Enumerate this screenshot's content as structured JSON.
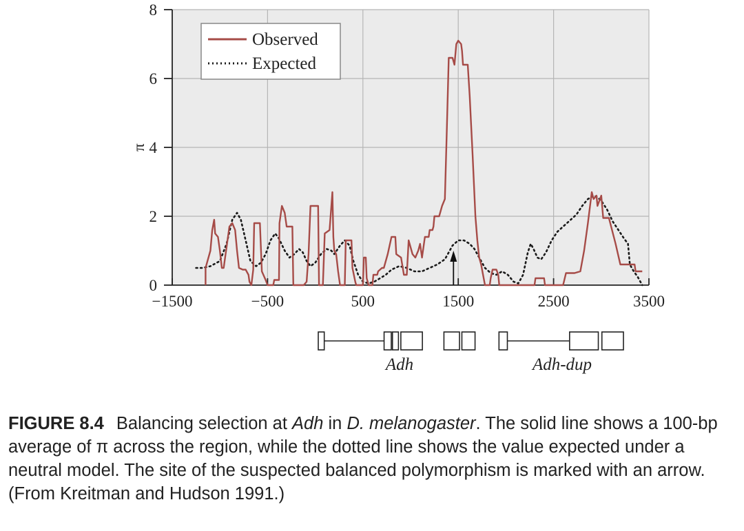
{
  "chart_data": {
    "type": "line",
    "ylabel": "π",
    "xlabel": "",
    "xlim": [
      -1500,
      3500
    ],
    "ylim": [
      0,
      8
    ],
    "x_ticks": [
      "−1500",
      "−500",
      "500",
      "1500",
      "2500",
      "3500"
    ],
    "x_tick_values": [
      -1500,
      -500,
      500,
      1500,
      2500,
      3500
    ],
    "y_ticks": [
      "0",
      "2",
      "4",
      "6",
      "8"
    ],
    "y_tick_values": [
      0,
      2,
      4,
      6,
      8
    ],
    "grid": true,
    "legend_position": "top-left",
    "series": [
      {
        "name": "Observed",
        "style": "solid",
        "color": "#a64b47",
        "points": [
          [
            -1150,
            0
          ],
          [
            -1150,
            0.5
          ],
          [
            -1100,
            1.0
          ],
          [
            -1080,
            1.6
          ],
          [
            -1060,
            1.9
          ],
          [
            -1050,
            1.5
          ],
          [
            -1020,
            1.4
          ],
          [
            -1000,
            1.0
          ],
          [
            -980,
            0.5
          ],
          [
            -960,
            0.5
          ],
          [
            -900,
            1.7
          ],
          [
            -870,
            1.8
          ],
          [
            -840,
            1.6
          ],
          [
            -820,
            1.0
          ],
          [
            -800,
            0.5
          ],
          [
            -760,
            0.45
          ],
          [
            -730,
            0.45
          ],
          [
            -700,
            0.3
          ],
          [
            -690,
            0.1
          ],
          [
            -670,
            0.0
          ],
          [
            -650,
            0.45
          ],
          [
            -640,
            1.8
          ],
          [
            -580,
            1.8
          ],
          [
            -560,
            0.4
          ],
          [
            -520,
            0.15
          ],
          [
            -500,
            0.0
          ],
          [
            -440,
            0.0
          ],
          [
            -430,
            0.15
          ],
          [
            -380,
            0.15
          ],
          [
            -375,
            1.8
          ],
          [
            -350,
            2.3
          ],
          [
            -320,
            2.1
          ],
          [
            -300,
            1.7
          ],
          [
            -240,
            1.7
          ],
          [
            -230,
            0.0
          ],
          [
            -130,
            0.0
          ],
          [
            -120,
            0.0
          ],
          [
            -90,
            0.1
          ],
          [
            -70,
            0.9
          ],
          [
            -50,
            2.3
          ],
          [
            30,
            2.3
          ],
          [
            40,
            0.0
          ],
          [
            80,
            0.0
          ],
          [
            100,
            1.5
          ],
          [
            150,
            1.6
          ],
          [
            180,
            2.7
          ],
          [
            190,
            1.4
          ],
          [
            200,
            1.0
          ],
          [
            220,
            0.9
          ],
          [
            240,
            0.4
          ],
          [
            260,
            0.0
          ],
          [
            300,
            0.0
          ],
          [
            310,
            0.0
          ],
          [
            320,
            1.3
          ],
          [
            380,
            1.3
          ],
          [
            390,
            0.5
          ],
          [
            420,
            0.1
          ],
          [
            430,
            0.0
          ],
          [
            500,
            0.0
          ],
          [
            510,
            0.8
          ],
          [
            530,
            0.8
          ],
          [
            540,
            0.2
          ],
          [
            560,
            0.0
          ],
          [
            600,
            0.0
          ],
          [
            610,
            0.3
          ],
          [
            650,
            0.3
          ],
          [
            660,
            0.4
          ],
          [
            700,
            0.5
          ],
          [
            720,
            0.5
          ],
          [
            760,
            0.9
          ],
          [
            800,
            1.4
          ],
          [
            840,
            1.4
          ],
          [
            850,
            0.9
          ],
          [
            900,
            0.8
          ],
          [
            930,
            0.3
          ],
          [
            960,
            0.3
          ],
          [
            980,
            1.3
          ],
          [
            1020,
            0.9
          ],
          [
            1050,
            0.8
          ],
          [
            1080,
            1.0
          ],
          [
            1100,
            1.2
          ],
          [
            1120,
            0.8
          ],
          [
            1150,
            1.4
          ],
          [
            1190,
            1.4
          ],
          [
            1200,
            1.6
          ],
          [
            1230,
            1.6
          ],
          [
            1240,
            1.7
          ],
          [
            1250,
            2.0
          ],
          [
            1300,
            2.0
          ],
          [
            1330,
            2.3
          ],
          [
            1360,
            2.5
          ],
          [
            1380,
            4.5
          ],
          [
            1400,
            6.6
          ],
          [
            1440,
            6.6
          ],
          [
            1460,
            6.4
          ],
          [
            1480,
            7.0
          ],
          [
            1500,
            7.1
          ],
          [
            1530,
            7.0
          ],
          [
            1540,
            6.8
          ],
          [
            1550,
            6.4
          ],
          [
            1600,
            6.4
          ],
          [
            1620,
            5.5
          ],
          [
            1650,
            3.8
          ],
          [
            1680,
            2.0
          ],
          [
            1700,
            1.3
          ],
          [
            1720,
            0.8
          ],
          [
            1740,
            0.6
          ],
          [
            1760,
            0.3
          ],
          [
            1780,
            0.0
          ],
          [
            1830,
            0.0
          ],
          [
            1840,
            0.2
          ],
          [
            1860,
            0.45
          ],
          [
            1900,
            0.45
          ],
          [
            1920,
            0.3
          ],
          [
            1930,
            0.0
          ],
          [
            2300,
            0.0
          ],
          [
            2310,
            0.2
          ],
          [
            2400,
            0.2
          ],
          [
            2410,
            0.0
          ],
          [
            2600,
            0.0
          ],
          [
            2630,
            0.35
          ],
          [
            2720,
            0.35
          ],
          [
            2780,
            0.4
          ],
          [
            2820,
            1.0
          ],
          [
            2860,
            1.8
          ],
          [
            2900,
            2.7
          ],
          [
            2920,
            2.5
          ],
          [
            2950,
            2.6
          ],
          [
            2960,
            2.3
          ],
          [
            3000,
            2.6
          ],
          [
            3020,
            1.95
          ],
          [
            3080,
            1.95
          ],
          [
            3150,
            1.2
          ],
          [
            3200,
            0.6
          ],
          [
            3350,
            0.6
          ],
          [
            3360,
            0.4
          ],
          [
            3430,
            0.4
          ]
        ]
      },
      {
        "name": "Expected",
        "style": "dotted",
        "color": "#1a1a1a",
        "points": [
          [
            -1250,
            0.5
          ],
          [
            -1180,
            0.5
          ],
          [
            -1100,
            0.55
          ],
          [
            -1000,
            0.7
          ],
          [
            -930,
            1.2
          ],
          [
            -870,
            1.9
          ],
          [
            -820,
            2.1
          ],
          [
            -780,
            1.9
          ],
          [
            -730,
            1.3
          ],
          [
            -680,
            0.7
          ],
          [
            -620,
            0.55
          ],
          [
            -570,
            0.65
          ],
          [
            -520,
            0.9
          ],
          [
            -470,
            1.3
          ],
          [
            -420,
            1.5
          ],
          [
            -380,
            1.35
          ],
          [
            -320,
            1.0
          ],
          [
            -270,
            0.8
          ],
          [
            -220,
            0.9
          ],
          [
            -170,
            1.05
          ],
          [
            -130,
            0.95
          ],
          [
            -90,
            0.7
          ],
          [
            -50,
            0.55
          ],
          [
            0,
            0.65
          ],
          [
            60,
            0.9
          ],
          [
            120,
            1.05
          ],
          [
            170,
            1.0
          ],
          [
            200,
            0.9
          ],
          [
            260,
            1.15
          ],
          [
            310,
            1.3
          ],
          [
            360,
            1.15
          ],
          [
            400,
            0.7
          ],
          [
            450,
            0.3
          ],
          [
            500,
            0.1
          ],
          [
            560,
            0.05
          ],
          [
            620,
            0.1
          ],
          [
            680,
            0.2
          ],
          [
            740,
            0.3
          ],
          [
            800,
            0.45
          ],
          [
            880,
            0.55
          ],
          [
            960,
            0.5
          ],
          [
            1040,
            0.4
          ],
          [
            1120,
            0.4
          ],
          [
            1200,
            0.5
          ],
          [
            1280,
            0.6
          ],
          [
            1360,
            0.75
          ],
          [
            1400,
            0.95
          ],
          [
            1440,
            1.15
          ],
          [
            1500,
            1.3
          ],
          [
            1560,
            1.3
          ],
          [
            1620,
            1.2
          ],
          [
            1670,
            1.05
          ],
          [
            1720,
            0.8
          ],
          [
            1780,
            0.5
          ],
          [
            1840,
            0.35
          ],
          [
            1900,
            0.3
          ],
          [
            1960,
            0.4
          ],
          [
            2020,
            0.3
          ],
          [
            2080,
            0.1
          ],
          [
            2130,
            0.05
          ],
          [
            2180,
            0.3
          ],
          [
            2230,
            0.95
          ],
          [
            2260,
            1.2
          ],
          [
            2290,
            1.05
          ],
          [
            2330,
            0.8
          ],
          [
            2370,
            0.75
          ],
          [
            2420,
            0.95
          ],
          [
            2480,
            1.3
          ],
          [
            2540,
            1.55
          ],
          [
            2600,
            1.7
          ],
          [
            2680,
            1.9
          ],
          [
            2740,
            2.05
          ],
          [
            2800,
            2.3
          ],
          [
            2860,
            2.5
          ],
          [
            2920,
            2.6
          ],
          [
            2960,
            2.55
          ],
          [
            3000,
            2.45
          ],
          [
            3060,
            2.2
          ],
          [
            3120,
            1.85
          ],
          [
            3180,
            1.6
          ],
          [
            3240,
            1.35
          ],
          [
            3280,
            1.2
          ],
          [
            3300,
            0.6
          ],
          [
            3340,
            0.4
          ],
          [
            3380,
            0.25
          ],
          [
            3430,
            0.0
          ]
        ]
      }
    ],
    "arrow_x": 1450,
    "genes": [
      {
        "label": "Adh",
        "exons": [
          [
            -750,
            -700
          ],
          [
            -200,
            -140
          ],
          [
            -130,
            -80
          ],
          [
            -60,
            120
          ],
          [
            300,
            430
          ],
          [
            450,
            560
          ]
        ],
        "line": [
          -700,
          -200
        ]
      },
      {
        "label": "Adh-dup",
        "exons": [
          [
            760,
            830
          ],
          [
            1350,
            1590
          ],
          [
            1620,
            1800
          ]
        ],
        "line": [
          830,
          1350
        ]
      }
    ]
  },
  "caption": {
    "figure_label": "FIGURE 8.4",
    "part1": "Balancing selection at ",
    "gene": "Adh",
    "part2": " in ",
    "species": "D. melanogaster",
    "part3": ". The solid line shows a 100-bp average of π across the region, while the dotted line shows the value expected under a neutral model. The site of the suspected balanced polymorphism is marked with an arrow. (From Kreitman and Hudson 1991.)"
  }
}
